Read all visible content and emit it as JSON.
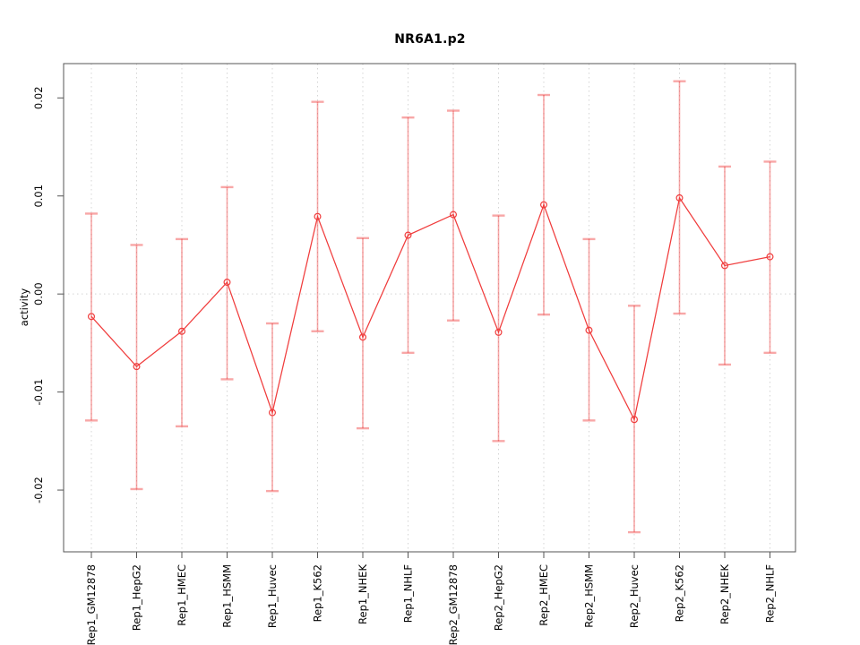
{
  "figure": {
    "background": "#FFFFFF"
  },
  "chart_data": {
    "type": "line",
    "title": "NR6A1.p2",
    "xlabel": "",
    "ylabel": "activity",
    "legend": "none",
    "grid_vertical_dotted": true,
    "grid_zero_line_dotted": true,
    "categories": [
      "Rep1_GM12878",
      "Rep1_HepG2",
      "Rep1_HMEC",
      "Rep1_HSMM",
      "Rep1_Huvec",
      "Rep1_K562",
      "Rep1_NHEK",
      "Rep1_NHLF",
      "Rep2_GM12878",
      "Rep2_HepG2",
      "Rep2_HMEC",
      "Rep2_HSMM",
      "Rep2_Huvec",
      "Rep2_K562",
      "Rep2_NHEK",
      "Rep2_NHLF"
    ],
    "series": [
      {
        "name": "activity",
        "marker": "open-circle",
        "values": [
          -0.0023,
          -0.0074,
          -0.0038,
          0.0012,
          -0.0121,
          0.0079,
          -0.0044,
          0.006,
          0.0081,
          -0.0039,
          0.0091,
          -0.0037,
          -0.0128,
          0.0098,
          0.0029,
          0.0038
        ],
        "error_high": [
          0.0082,
          0.005,
          0.0056,
          0.0109,
          -0.003,
          0.0196,
          0.0057,
          0.018,
          0.0187,
          0.008,
          0.0203,
          0.0056,
          -0.0012,
          0.0217,
          0.013,
          0.0135
        ],
        "error_low": [
          -0.0129,
          -0.0199,
          -0.0135,
          -0.0087,
          -0.0201,
          -0.0038,
          -0.0137,
          -0.006,
          -0.0027,
          -0.015,
          -0.0021,
          -0.0129,
          -0.0243,
          -0.002,
          -0.0072,
          -0.006
        ]
      }
    ],
    "yticks": [
      -0.02,
      -0.01,
      0,
      0.01,
      0.02
    ],
    "ytick_labels": [
      "-0.02",
      "-0.01",
      "0.00",
      "0.01",
      "0.02"
    ],
    "ylim": [
      -0.0263,
      0.0235
    ],
    "colors": {
      "point_line": "#F03C3C",
      "error_bar": "rgba(240,60,60,0.45)",
      "grid": "#D4D4D4",
      "axis": "#555555",
      "text": "#000000"
    }
  }
}
